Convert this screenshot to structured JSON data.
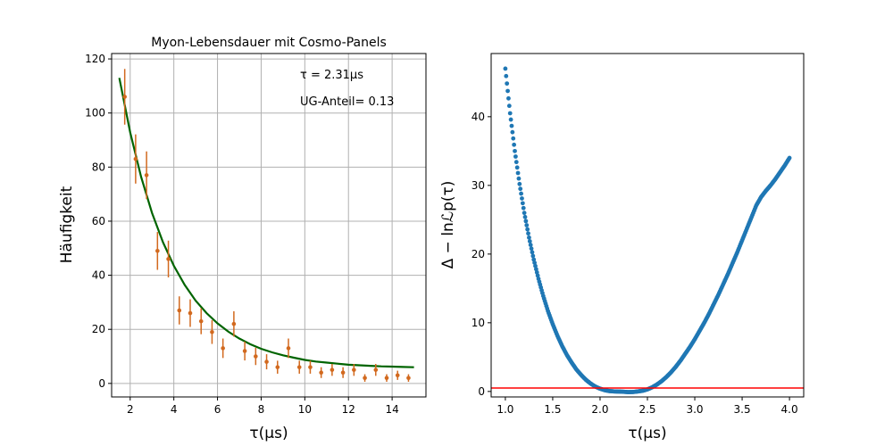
{
  "chart_data": [
    {
      "type": "scatter",
      "title": "Myon-Lebensdauer mit Cosmo-Panels",
      "xlabel": "τ(μs)",
      "ylabel": "Häufigkeit",
      "xlim": [
        1.15,
        15.55
      ],
      "ylim": [
        -5,
        122
      ],
      "xticks": [
        2,
        4,
        6,
        8,
        10,
        12,
        14
      ],
      "yticks": [
        0,
        20,
        40,
        60,
        80,
        100,
        120
      ],
      "grid": true,
      "annotations": [
        "τ = 2.31μs",
        "UG-Anteil= 0.13"
      ],
      "series": [
        {
          "kind": "errorbar",
          "color": "#d2691e",
          "x": [
            1.75,
            2.25,
            2.75,
            3.25,
            3.75,
            4.25,
            4.75,
            5.25,
            5.75,
            6.25,
            6.75,
            7.25,
            7.75,
            8.25,
            8.75,
            9.25,
            9.75,
            10.25,
            10.75,
            11.25,
            11.75,
            12.25,
            12.75,
            13.25,
            13.75,
            14.25,
            14.75
          ],
          "y": [
            106,
            83,
            77,
            49,
            46,
            27,
            26,
            23,
            19,
            13,
            22,
            12,
            10,
            8,
            6,
            13,
            6,
            6,
            4,
            5,
            4,
            5,
            2,
            5,
            2,
            3,
            2
          ],
          "yerr": [
            10.3,
            9.1,
            8.8,
            7.0,
            6.8,
            5.2,
            5.1,
            4.8,
            4.4,
            3.6,
            4.7,
            3.5,
            3.2,
            2.8,
            2.4,
            3.6,
            2.4,
            2.4,
            2.0,
            2.2,
            2.0,
            2.2,
            1.4,
            2.2,
            1.4,
            1.7,
            1.4
          ]
        },
        {
          "kind": "line",
          "color": "#006400",
          "x": [
            1.5,
            2.0,
            2.5,
            3.0,
            3.5,
            4.0,
            4.5,
            5.0,
            5.5,
            6.0,
            6.5,
            7.0,
            7.5,
            8.0,
            8.5,
            9.0,
            9.5,
            10.0,
            10.5,
            11.0,
            11.5,
            12.0,
            12.5,
            13.0,
            13.5,
            14.0,
            14.5,
            15.0
          ],
          "y": [
            113.0,
            92.8,
            76.4,
            63.1,
            52.3,
            43.5,
            36.4,
            30.6,
            26.0,
            22.2,
            19.1,
            16.6,
            14.5,
            12.8,
            11.5,
            10.4,
            9.5,
            8.7,
            8.1,
            7.7,
            7.3,
            6.9,
            6.7,
            6.5,
            6.3,
            6.2,
            6.1,
            6.0
          ]
        }
      ]
    },
    {
      "type": "scatter",
      "title": "",
      "xlabel": "τ(μs)",
      "ylabel": "Δ − lnℒp(τ)",
      "xlim": [
        0.85,
        4.15
      ],
      "ylim": [
        -0.8,
        49.2
      ],
      "xticks": [
        1.0,
        1.5,
        2.0,
        2.5,
        3.0,
        3.5,
        4.0
      ],
      "xtick_labels": [
        "1.0",
        "1.5",
        "2.0",
        "2.5",
        "3.0",
        "3.5",
        "4.0"
      ],
      "yticks": [
        0,
        10,
        20,
        30,
        40
      ],
      "grid": false,
      "hline": {
        "y": 0.5,
        "color": "#ff0000"
      },
      "series": [
        {
          "kind": "points",
          "color": "#1f77b4",
          "x": [
            1.0,
            1.05,
            1.1,
            1.15,
            1.2,
            1.25,
            1.3,
            1.35,
            1.4,
            1.45,
            1.5,
            1.55,
            1.6,
            1.65,
            1.7,
            1.75,
            1.8,
            1.85,
            1.9,
            1.95,
            2.0,
            2.05,
            2.1,
            2.15,
            2.2,
            2.25,
            2.3,
            2.35,
            2.4,
            2.45,
            2.5,
            2.55,
            2.6,
            2.65,
            2.7,
            2.75,
            2.8,
            2.85,
            2.9,
            2.95,
            3.0,
            3.05,
            3.1,
            3.15,
            3.2,
            3.25,
            3.3,
            3.35,
            3.4,
            3.45,
            3.5,
            3.55,
            3.6,
            3.65,
            3.7,
            3.75,
            3.8,
            3.85,
            3.9,
            3.95,
            4.0
          ],
          "y": [
            47.0,
            40.5,
            35.0,
            30.2,
            26.0,
            22.4,
            19.2,
            16.4,
            13.9,
            11.7,
            9.8,
            8.1,
            6.6,
            5.3,
            4.2,
            3.2,
            2.4,
            1.7,
            1.15,
            0.7,
            0.4,
            0.18,
            0.05,
            0.0,
            -0.02,
            -0.05,
            -0.1,
            -0.08,
            0.0,
            0.1,
            0.3,
            0.6,
            1.0,
            1.5,
            2.1,
            2.8,
            3.6,
            4.5,
            5.5,
            6.5,
            7.6,
            8.8,
            10.0,
            11.3,
            12.7,
            14.1,
            15.6,
            17.1,
            18.7,
            20.3,
            22.0,
            23.7,
            25.4,
            27.1,
            28.3,
            29.2,
            30.0,
            30.9,
            31.9,
            32.9,
            34.0
          ]
        }
      ]
    }
  ]
}
